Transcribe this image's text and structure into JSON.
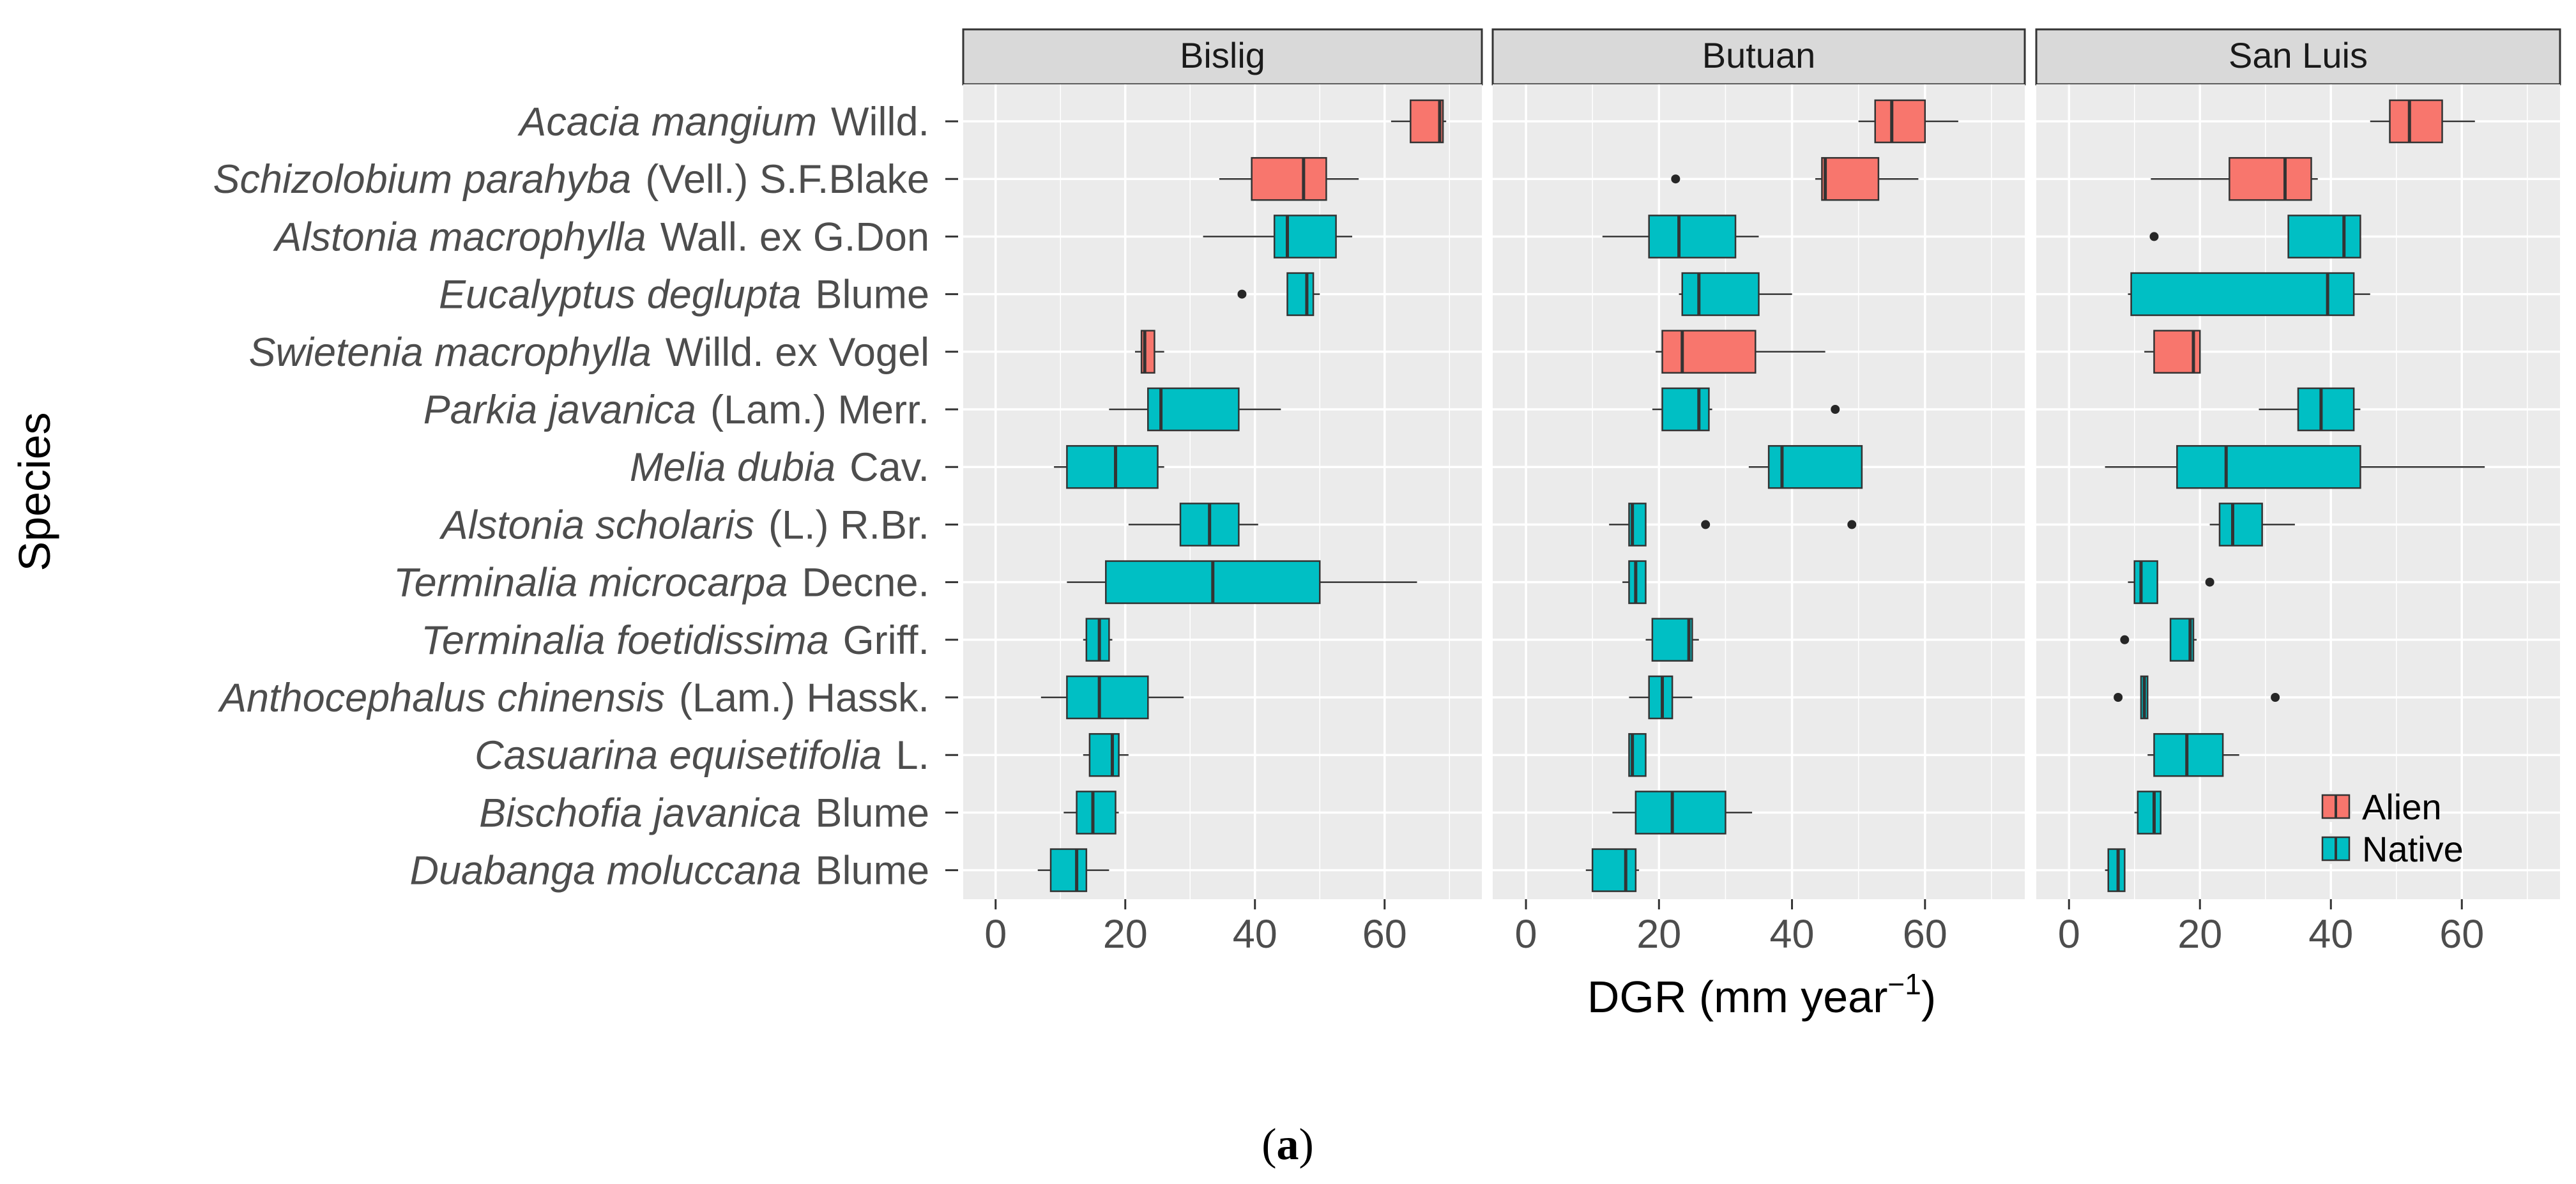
{
  "chart_data": {
    "type": "boxplot",
    "xlabel": "DGR (mm year",
    "xlabel_sup": "−1",
    "xlabel_close": ")",
    "ylabel": "Species",
    "xlim": [
      -5,
      75
    ],
    "xticks": [
      0,
      20,
      40,
      60
    ],
    "caption_open": "(",
    "caption_letter": "a",
    "caption_close": ")",
    "legend": [
      {
        "key": "alien",
        "label": "Alien",
        "color": "#F8766D"
      },
      {
        "key": "native",
        "label": "Native",
        "color": "#00BFC4"
      }
    ],
    "species": [
      {
        "genus": "Acacia mangium",
        "author": "Willd."
      },
      {
        "genus": "Schizolobium parahyba",
        "author": "(Vell.) S.F.Blake"
      },
      {
        "genus": "Alstonia macrophylla",
        "author": "Wall. ex G.Don"
      },
      {
        "genus": "Eucalyptus deglupta",
        "author": "Blume"
      },
      {
        "genus": "Swietenia macrophylla",
        "author": "Willd. ex Vogel"
      },
      {
        "genus": "Parkia javanica",
        "author": "(Lam.) Merr."
      },
      {
        "genus": "Melia dubia",
        "author": "Cav."
      },
      {
        "genus": "Alstonia scholaris",
        "author": "(L.) R.Br."
      },
      {
        "genus": "Terminalia microcarpa",
        "author": "Decne."
      },
      {
        "genus": "Terminalia foetidissima",
        "author": "Griff."
      },
      {
        "genus": "Anthocephalus chinensis",
        "author": "(Lam.) Hassk."
      },
      {
        "genus": "Casuarina equisetifolia",
        "author": "L."
      },
      {
        "genus": "Bischofia javanica",
        "author": "Blume"
      },
      {
        "genus": "Duabanga moluccana",
        "author": "Blume"
      }
    ],
    "panels": [
      {
        "title": "Bislig",
        "boxes": [
          {
            "row": 0,
            "group": "alien",
            "wmin": 61,
            "q1": 64,
            "median": 68.5,
            "q3": 69,
            "wmax": 69.5,
            "outliers": []
          },
          {
            "row": 1,
            "group": "alien",
            "wmin": 34.5,
            "q1": 39.5,
            "median": 47.5,
            "q3": 51,
            "wmax": 56,
            "outliers": []
          },
          {
            "row": 2,
            "group": "native",
            "wmin": 32,
            "q1": 43,
            "median": 45,
            "q3": 52.5,
            "wmax": 55,
            "outliers": []
          },
          {
            "row": 3,
            "group": "native",
            "wmin": 45,
            "q1": 45,
            "median": 48,
            "q3": 49,
            "wmax": 50,
            "outliers": [
              38
            ]
          },
          {
            "row": 4,
            "group": "alien",
            "wmin": 21.5,
            "q1": 22.5,
            "median": 23,
            "q3": 24.5,
            "wmax": 26,
            "outliers": []
          },
          {
            "row": 5,
            "group": "native",
            "wmin": 17.5,
            "q1": 23.5,
            "median": 25.5,
            "q3": 37.5,
            "wmax": 44,
            "outliers": []
          },
          {
            "row": 6,
            "group": "native",
            "wmin": 9,
            "q1": 11,
            "median": 18.5,
            "q3": 25,
            "wmax": 26,
            "outliers": []
          },
          {
            "row": 7,
            "group": "native",
            "wmin": 20.5,
            "q1": 28.5,
            "median": 33,
            "q3": 37.5,
            "wmax": 40.5,
            "outliers": []
          },
          {
            "row": 8,
            "group": "native",
            "wmin": 11,
            "q1": 17,
            "median": 33.5,
            "q3": 50,
            "wmax": 65,
            "outliers": []
          },
          {
            "row": 9,
            "group": "native",
            "wmin": 13.5,
            "q1": 14,
            "median": 16,
            "q3": 17.5,
            "wmax": 18,
            "outliers": []
          },
          {
            "row": 10,
            "group": "native",
            "wmin": 7,
            "q1": 11,
            "median": 16,
            "q3": 23.5,
            "wmax": 29,
            "outliers": []
          },
          {
            "row": 11,
            "group": "native",
            "wmin": 13.5,
            "q1": 14.5,
            "median": 18,
            "q3": 19,
            "wmax": 20.5,
            "outliers": []
          },
          {
            "row": 12,
            "group": "native",
            "wmin": 10.5,
            "q1": 12.5,
            "median": 15,
            "q3": 18.5,
            "wmax": 19,
            "outliers": []
          },
          {
            "row": 13,
            "group": "native",
            "wmin": 6.5,
            "q1": 8.5,
            "median": 12.5,
            "q3": 14,
            "wmax": 17.5,
            "outliers": []
          }
        ]
      },
      {
        "title": "Butuan",
        "boxes": [
          {
            "row": 0,
            "group": "alien",
            "wmin": 50,
            "q1": 52.5,
            "median": 55,
            "q3": 60,
            "wmax": 65,
            "outliers": []
          },
          {
            "row": 1,
            "group": "alien",
            "wmin": 43.5,
            "q1": 44.5,
            "median": 45,
            "q3": 53,
            "wmax": 59,
            "outliers": [
              22.5
            ]
          },
          {
            "row": 2,
            "group": "native",
            "wmin": 11.5,
            "q1": 18.5,
            "median": 23,
            "q3": 31.5,
            "wmax": 35,
            "outliers": []
          },
          {
            "row": 3,
            "group": "native",
            "wmin": 23,
            "q1": 23.5,
            "median": 26,
            "q3": 35,
            "wmax": 40,
            "outliers": []
          },
          {
            "row": 4,
            "group": "alien",
            "wmin": 19.5,
            "q1": 20.5,
            "median": 23.5,
            "q3": 34.5,
            "wmax": 45,
            "outliers": []
          },
          {
            "row": 5,
            "group": "native",
            "wmin": 19,
            "q1": 20.5,
            "median": 26,
            "q3": 27.5,
            "wmax": 28,
            "outliers": [
              46.5
            ]
          },
          {
            "row": 6,
            "group": "native",
            "wmin": 33.5,
            "q1": 36.5,
            "median": 38.5,
            "q3": 50.5,
            "wmax": 50.5,
            "outliers": []
          },
          {
            "row": 7,
            "group": "native",
            "wmin": 12.5,
            "q1": 15.5,
            "median": 16,
            "q3": 18,
            "wmax": 18,
            "outliers": [
              27,
              49
            ]
          },
          {
            "row": 8,
            "group": "native",
            "wmin": 14.5,
            "q1": 15.5,
            "median": 16.5,
            "q3": 18,
            "wmax": 18,
            "outliers": []
          },
          {
            "row": 9,
            "group": "native",
            "wmin": 18,
            "q1": 19,
            "median": 24.5,
            "q3": 25,
            "wmax": 26,
            "outliers": []
          },
          {
            "row": 10,
            "group": "native",
            "wmin": 15.5,
            "q1": 18.5,
            "median": 20.5,
            "q3": 22,
            "wmax": 25,
            "outliers": []
          },
          {
            "row": 11,
            "group": "native",
            "wmin": 15.5,
            "q1": 15.5,
            "median": 16,
            "q3": 18,
            "wmax": 18,
            "outliers": []
          },
          {
            "row": 12,
            "group": "native",
            "wmin": 13,
            "q1": 16.5,
            "median": 22,
            "q3": 30,
            "wmax": 34,
            "outliers": []
          },
          {
            "row": 13,
            "group": "native",
            "wmin": 9,
            "q1": 10,
            "median": 15,
            "q3": 16.5,
            "wmax": 17,
            "outliers": []
          }
        ]
      },
      {
        "title": "San Luis",
        "boxes": [
          {
            "row": 0,
            "group": "alien",
            "wmin": 46,
            "q1": 49,
            "median": 52,
            "q3": 57,
            "wmax": 62,
            "outliers": []
          },
          {
            "row": 1,
            "group": "alien",
            "wmin": 12.5,
            "q1": 24.5,
            "median": 33,
            "q3": 37,
            "wmax": 38,
            "outliers": []
          },
          {
            "row": 2,
            "group": "native",
            "wmin": 33.5,
            "q1": 33.5,
            "median": 42,
            "q3": 44.5,
            "wmax": 44.5,
            "outliers": [
              13
            ]
          },
          {
            "row": 3,
            "group": "native",
            "wmin": 9,
            "q1": 9.5,
            "median": 39.5,
            "q3": 43.5,
            "wmax": 46,
            "outliers": []
          },
          {
            "row": 4,
            "group": "alien",
            "wmin": 11.5,
            "q1": 13,
            "median": 19,
            "q3": 20,
            "wmax": 20,
            "outliers": []
          },
          {
            "row": 5,
            "group": "native",
            "wmin": 29,
            "q1": 35,
            "median": 38.5,
            "q3": 43.5,
            "wmax": 44.5,
            "outliers": []
          },
          {
            "row": 6,
            "group": "native",
            "wmin": 5.5,
            "q1": 16.5,
            "median": 24,
            "q3": 44.5,
            "wmax": 63.5,
            "outliers": []
          },
          {
            "row": 7,
            "group": "native",
            "wmin": 21.5,
            "q1": 23,
            "median": 25,
            "q3": 29.5,
            "wmax": 34.5,
            "outliers": []
          },
          {
            "row": 8,
            "group": "native",
            "wmin": 9,
            "q1": 10,
            "median": 11,
            "q3": 13.5,
            "wmax": 13.5,
            "outliers": [
              21.5
            ]
          },
          {
            "row": 9,
            "group": "native",
            "wmin": 15.5,
            "q1": 15.5,
            "median": 18.5,
            "q3": 19,
            "wmax": 19.5,
            "outliers": [
              8.5
            ]
          },
          {
            "row": 10,
            "group": "native",
            "wmin": 11,
            "q1": 11,
            "median": 11.5,
            "q3": 12,
            "wmax": 12,
            "outliers": [
              7.5,
              31.5
            ]
          },
          {
            "row": 11,
            "group": "native",
            "wmin": 12,
            "q1": 13,
            "median": 18,
            "q3": 23.5,
            "wmax": 26,
            "outliers": []
          },
          {
            "row": 12,
            "group": "native",
            "wmin": 10,
            "q1": 10.5,
            "median": 13,
            "q3": 14,
            "wmax": 14,
            "outliers": []
          },
          {
            "row": 13,
            "group": "native",
            "wmin": 5.5,
            "q1": 6,
            "median": 7.5,
            "q3": 8.5,
            "wmax": 8.5,
            "outliers": []
          }
        ]
      }
    ]
  }
}
